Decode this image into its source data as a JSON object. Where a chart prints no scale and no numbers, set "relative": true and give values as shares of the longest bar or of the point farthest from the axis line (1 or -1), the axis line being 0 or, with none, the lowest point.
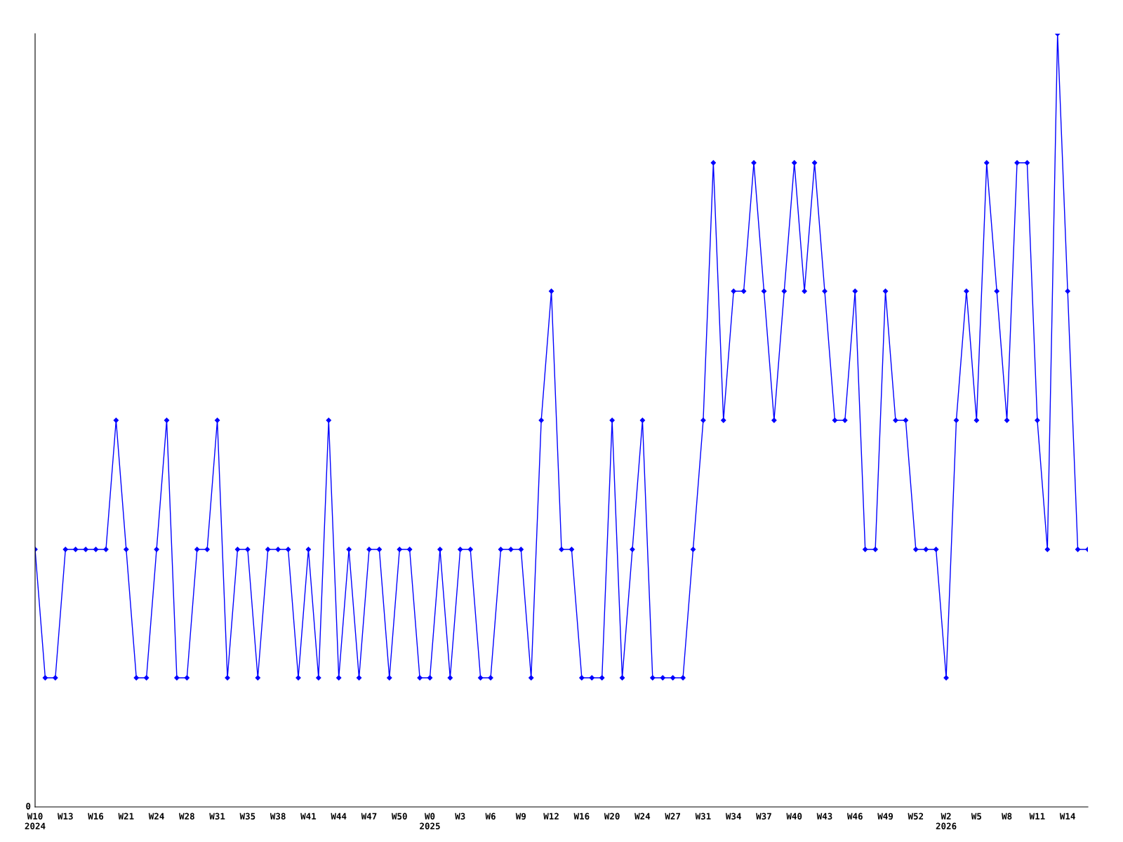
{
  "chart_data": {
    "type": "line",
    "relative": true,
    "color": "#0000ff",
    "marker": "diamond",
    "line_style": "solid",
    "grid": false,
    "legend": false,
    "categories": [
      "W10\n2024",
      null,
      null,
      "W13",
      null,
      null,
      "W16",
      null,
      null,
      "W21",
      null,
      null,
      "W24",
      null,
      null,
      "W28",
      null,
      null,
      "W31",
      null,
      null,
      "W35",
      null,
      null,
      "W38",
      null,
      null,
      "W41",
      null,
      null,
      "W44",
      null,
      null,
      "W47",
      null,
      null,
      "W50",
      null,
      null,
      "W0\n2025",
      null,
      null,
      "W3",
      null,
      null,
      "W6",
      null,
      null,
      "W9",
      null,
      null,
      "W12",
      null,
      null,
      "W16",
      null,
      null,
      "W20",
      null,
      null,
      "W24",
      null,
      null,
      "W27",
      null,
      null,
      "W31",
      null,
      null,
      "W34",
      null,
      null,
      "W37",
      null,
      null,
      "W40",
      null,
      null,
      "W43",
      null,
      null,
      "W46",
      null,
      null,
      "W49",
      null,
      null,
      "W52",
      null,
      null,
      "W2\n2026",
      null,
      null,
      "W5",
      null,
      null,
      "W8",
      null,
      null,
      "W11",
      null,
      null,
      "W14",
      null,
      null
    ],
    "values": [
      0.333,
      0.167,
      0.167,
      0.333,
      0.333,
      0.333,
      0.333,
      0.333,
      0.5,
      0.333,
      0.167,
      0.167,
      0.333,
      0.5,
      0.167,
      0.167,
      0.333,
      0.333,
      0.5,
      0.167,
      0.333,
      0.333,
      0.167,
      0.333,
      0.333,
      0.333,
      0.167,
      0.333,
      0.167,
      0.5,
      0.167,
      0.333,
      0.167,
      0.333,
      0.333,
      0.167,
      0.333,
      0.333,
      0.167,
      0.167,
      0.333,
      0.167,
      0.333,
      0.333,
      0.167,
      0.167,
      0.333,
      0.333,
      0.333,
      0.167,
      0.5,
      0.667,
      0.333,
      0.333,
      0.167,
      0.167,
      0.167,
      0.5,
      0.167,
      0.333,
      0.5,
      0.167,
      0.167,
      0.167,
      0.167,
      0.333,
      0.5,
      0.833,
      0.5,
      0.667,
      0.667,
      0.833,
      0.667,
      0.5,
      0.667,
      0.833,
      0.667,
      0.833,
      0.667,
      0.5,
      0.5,
      0.667,
      0.333,
      0.333,
      0.667,
      0.5,
      0.5,
      0.333,
      0.333,
      0.333,
      0.167,
      0.5,
      0.667,
      0.5,
      0.833,
      0.667,
      0.5,
      0.833,
      0.833,
      0.5,
      0.333,
      1,
      0.667,
      0.333,
      0.333
    ],
    "annotations": [
      "0"
    ]
  }
}
